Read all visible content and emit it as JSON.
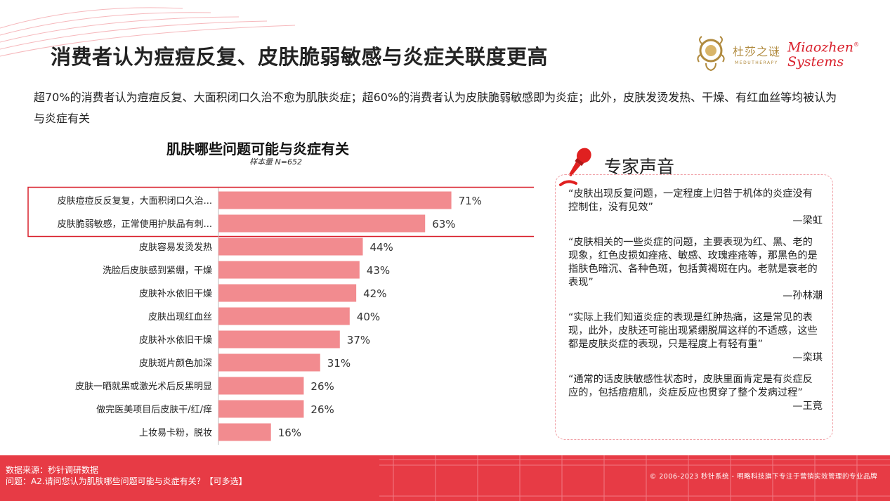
{
  "header": {
    "title": "消费者认为痘痘反复、皮肤脆弱敏感与炎症关联度更高",
    "logo_cn": "杜莎之谜",
    "logo_cn_sub": "MEDUTHERAPY",
    "logo_en_line1": "Miaozhen",
    "logo_en_line2": "Systems",
    "logo_en_mark": "®"
  },
  "subtitle": "超70%的消费者认为痘痘反复、大面积闭口久治不愈为肌肤炎症；超60%的消费者认为皮肤脆弱敏感即为炎症；此外，皮肤发烫发热、干燥、有红血丝等均被认为与炎症有关",
  "chart_data": {
    "type": "bar",
    "orientation": "horizontal",
    "title": "肌肤哪些问题可能与炎症有关",
    "sample_note": "样本量 N=652",
    "categories": [
      "皮肤痘痘反反复复，大面积闭口久治...",
      "皮肤脆弱敏感，正常使用护肤品有刺...",
      "皮肤容易发烫发热",
      "洗脸后皮肤感到紧绷，干燥",
      "皮肤补水依旧干燥",
      "皮肤出现红血丝",
      "皮肤补水依旧干燥",
      "皮肤斑片颜色加深",
      "皮肤一晒就黑或激光术后反黑明显",
      "做完医美项目后皮肤干/红/痒",
      "上妆易卡粉，脱妆"
    ],
    "values": [
      71,
      63,
      44,
      43,
      42,
      40,
      37,
      31,
      26,
      26,
      16
    ],
    "value_labels": [
      "71%",
      "63%",
      "44%",
      "43%",
      "42%",
      "40%",
      "37%",
      "31%",
      "26%",
      "26%",
      "16%"
    ],
    "highlighted": [
      0,
      1
    ],
    "bar_color": "#f28b8f",
    "highlight_border_color": "#d9202c",
    "xlim": [
      0,
      100
    ]
  },
  "expert": {
    "title": "专家声音",
    "quotes": [
      {
        "text": "“皮肤出现反复问题，一定程度上归咎于机体的炎症没有控制住，没有见效”",
        "author": "—梁虹"
      },
      {
        "text": "“皮肤相关的一些炎症的问题，主要表现为红、黑、老的现象，红色皮损如痤疮、敏感、玫瑰痤疮等，那黑色的是指肤色暗沉、各种色斑，包括黄褐斑在内。老就是衰老的表现”",
        "author": "—孙林潮"
      },
      {
        "text": "“实际上我们知道炎症的表现是红肿热痛，这是常见的表现，此外，皮肤还可能出现紧绷脱屑这样的不适感，这些都是皮肤炎症的表现，只是程度上有轻有重”",
        "author": "—栾琪"
      },
      {
        "text": "“通常的话皮肤敏感性状态时，皮肤里面肯定是有炎症反应的，包括痘痘肌，炎症反应也贯穿了整个发病过程”",
        "author": "—王竟"
      }
    ]
  },
  "footer": {
    "source_line1": "数据来源：秒针调研数据",
    "source_line2": "问题：A2.请问您认为肌肤哪些问题可能与炎症有关？【可多选】",
    "copyright": "© 2006-2023 秒针系统 - 明略科技旗下专注于营销实效管理的专业品牌"
  },
  "colors": {
    "accent_red": "#e73b45",
    "brand_gold": "#b08a3e",
    "quote_border": "#f0a0a6"
  }
}
